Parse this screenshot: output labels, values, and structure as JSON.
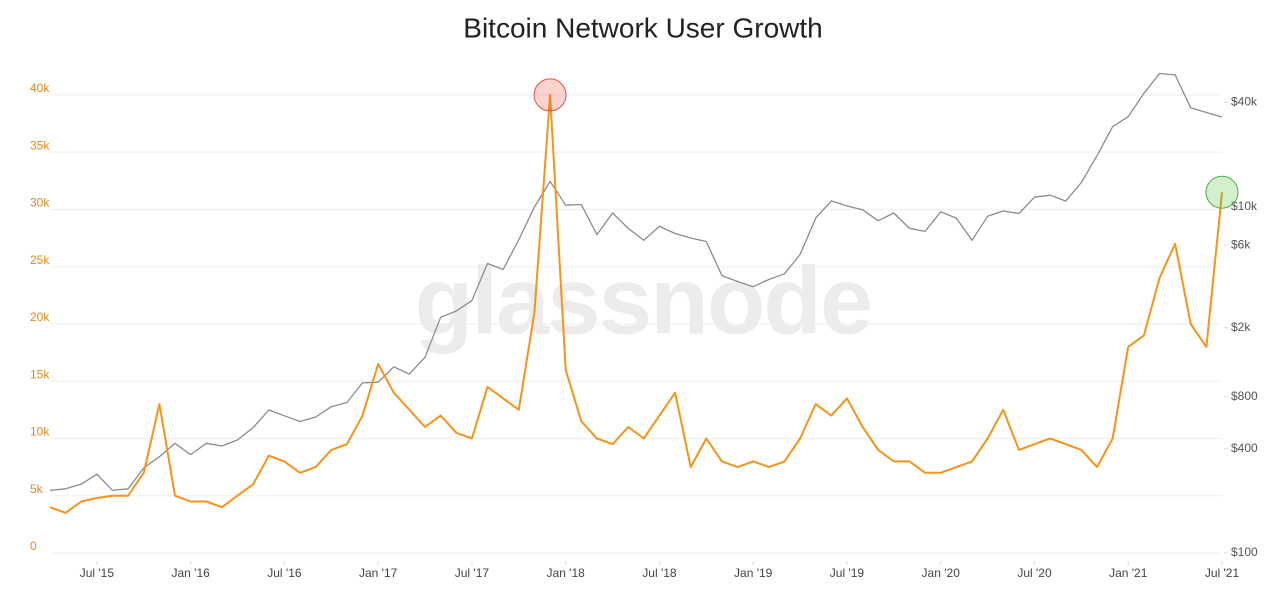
{
  "chart_data": {
    "type": "line",
    "title": "Bitcoin Network User Growth",
    "watermark": "glassnode",
    "x": [
      "2015-04",
      "2015-05",
      "2015-06",
      "2015-07",
      "2015-08",
      "2015-09",
      "2015-10",
      "2015-11",
      "2015-12",
      "2016-01",
      "2016-02",
      "2016-03",
      "2016-04",
      "2016-05",
      "2016-06",
      "2016-07",
      "2016-08",
      "2016-09",
      "2016-10",
      "2016-11",
      "2016-12",
      "2017-01",
      "2017-02",
      "2017-03",
      "2017-04",
      "2017-05",
      "2017-06",
      "2017-07",
      "2017-08",
      "2017-09",
      "2017-10",
      "2017-11",
      "2017-12",
      "2018-01",
      "2018-02",
      "2018-03",
      "2018-04",
      "2018-05",
      "2018-06",
      "2018-07",
      "2018-08",
      "2018-09",
      "2018-10",
      "2018-11",
      "2018-12",
      "2019-01",
      "2019-02",
      "2019-03",
      "2019-04",
      "2019-05",
      "2019-06",
      "2019-07",
      "2019-08",
      "2019-09",
      "2019-10",
      "2019-11",
      "2019-12",
      "2020-01",
      "2020-02",
      "2020-03",
      "2020-04",
      "2020-05",
      "2020-06",
      "2020-07",
      "2020-08",
      "2020-09",
      "2020-10",
      "2020-11",
      "2020-12",
      "2021-01",
      "2021-02",
      "2021-03",
      "2021-04",
      "2021-05",
      "2021-06",
      "2021-07"
    ],
    "xlim": [
      "2015-04",
      "2021-07"
    ],
    "xticks": [
      {
        "value": "2015-07",
        "label": "Jul '15"
      },
      {
        "value": "2016-01",
        "label": "Jan '16"
      },
      {
        "value": "2016-07",
        "label": "Jul '16"
      },
      {
        "value": "2017-01",
        "label": "Jan '17"
      },
      {
        "value": "2017-07",
        "label": "Jul '17"
      },
      {
        "value": "2018-01",
        "label": "Jan '18"
      },
      {
        "value": "2018-07",
        "label": "Jul '18"
      },
      {
        "value": "2019-01",
        "label": "Jan '19"
      },
      {
        "value": "2019-07",
        "label": "Jul '19"
      },
      {
        "value": "2020-01",
        "label": "Jan '20"
      },
      {
        "value": "2020-07",
        "label": "Jul '20"
      },
      {
        "value": "2021-01",
        "label": "Jan '21"
      },
      {
        "value": "2021-07",
        "label": "Jul '21"
      }
    ],
    "ylim": [
      0,
      42000
    ],
    "yticks": [
      0,
      {
        "value": 5000,
        "label": "5k"
      },
      {
        "value": 10000,
        "label": "10k"
      },
      {
        "value": 15000,
        "label": "15k"
      },
      {
        "value": 20000,
        "label": "20k"
      },
      {
        "value": 25000,
        "label": "25k"
      },
      {
        "value": 30000,
        "label": "30k"
      },
      {
        "value": 35000,
        "label": "35k"
      },
      {
        "value": 40000,
        "label": "40k"
      }
    ],
    "y2lim": [
      100,
      60000
    ],
    "y2log": true,
    "y2ticks": [
      {
        "value": 100,
        "label": "$100"
      },
      {
        "value": 400,
        "label": "$400"
      },
      {
        "value": 800,
        "label": "$800"
      },
      {
        "value": 2000,
        "label": "$2k"
      },
      {
        "value": 6000,
        "label": "$6k"
      },
      {
        "value": 10000,
        "label": "$10k"
      },
      {
        "value": 40000,
        "label": "$40k"
      }
    ],
    "grid": true,
    "series": [
      {
        "color": "#f7931a",
        "values": [
          4000,
          3500,
          4500,
          4800,
          5000,
          5000,
          7000,
          13000,
          5000,
          4500,
          4500,
          4000,
          5000,
          6000,
          8500,
          8000,
          7000,
          7500,
          9000,
          9500,
          12000,
          16500,
          14000,
          12500,
          11000,
          12000,
          10500,
          10000,
          14500,
          13500,
          12500,
          21000,
          40000,
          16000,
          11500,
          10000,
          9500,
          11000,
          10000,
          12000,
          14000,
          7500,
          10000,
          8000,
          7500,
          8000,
          7500,
          8000,
          10000,
          13000,
          12000,
          13500,
          11000,
          9000,
          8000,
          8000,
          7000,
          7000,
          7500,
          8000,
          10000,
          12500,
          9000,
          9500,
          10000,
          9500,
          9000,
          7500,
          10000,
          18000,
          19000,
          24000,
          27000,
          20000,
          18000,
          31500
        ]
      },
      {
        "color": "#8c8c8c",
        "axis": "y2",
        "values": [
          230,
          235,
          250,
          285,
          230,
          235,
          310,
          360,
          430,
          370,
          430,
          415,
          450,
          530,
          670,
          620,
          575,
          610,
          700,
          740,
          960,
          970,
          1190,
          1080,
          1350,
          2300,
          2500,
          2870,
          4700,
          4340,
          6450,
          9950,
          14000,
          10200,
          10300,
          6900,
          9200,
          7500,
          6400,
          7700,
          7000,
          6600,
          6300,
          4000,
          3700,
          3450,
          3800,
          4100,
          5300,
          8600,
          10800,
          10100,
          9600,
          8300,
          9200,
          7500,
          7200,
          9350,
          8600,
          6400,
          8800,
          9450,
          9140,
          11350,
          11650,
          10780,
          13800,
          19700,
          29000,
          33100,
          45200,
          58800,
          57700,
          37300,
          35000,
          33000
        ]
      }
    ]
  }
}
